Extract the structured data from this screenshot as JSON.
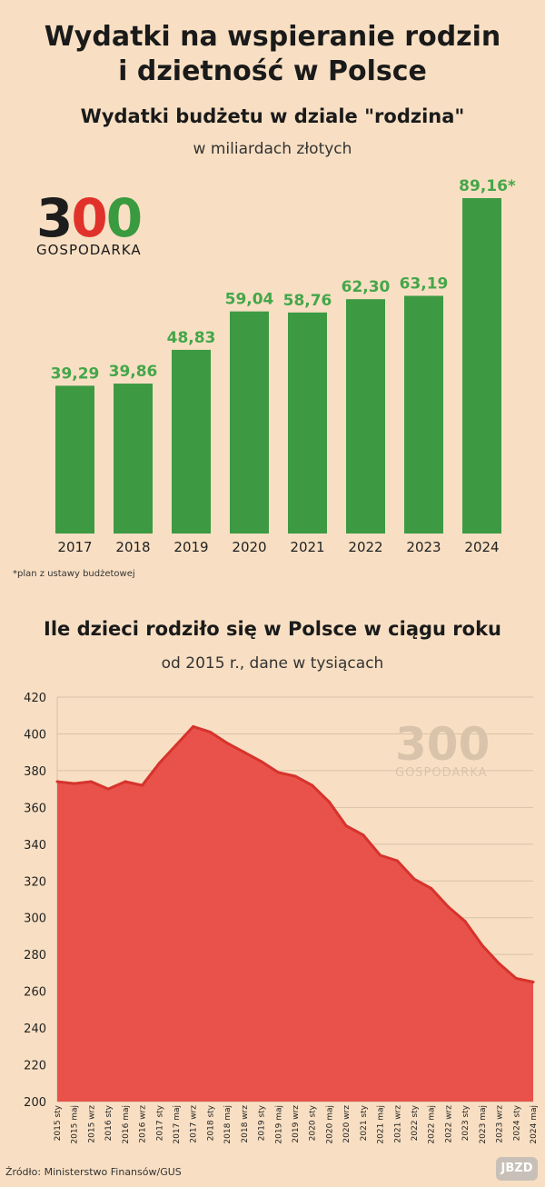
{
  "title_line1": "Wydatki na wspieranie rodzin",
  "title_line2": "i dzietność w Polsce",
  "logo": {
    "digits": [
      "3",
      "0",
      "0"
    ],
    "word": "GOSPODARKA"
  },
  "colors": {
    "background": "#f8dfc3",
    "bar": "#3d9a43",
    "bar_label": "#45a64a",
    "area_fill": "#e8524a",
    "area_line": "#d6332c",
    "logo_red": "#e0322b",
    "logo_green": "#3a9a3f"
  },
  "footnote": "*plan z ustawy budżetowej",
  "source": "Źródło: Ministerstwo Finansów/GUS",
  "badge": "JBZD",
  "chart_data": [
    {
      "type": "bar",
      "title": "Wydatki budżetu w dziale \"rodzina\"",
      "subtitle": "w miliardach złotych",
      "categories": [
        "2017",
        "2018",
        "2019",
        "2020",
        "2021",
        "2022",
        "2023",
        "2024"
      ],
      "values": [
        39.29,
        39.86,
        48.83,
        59.04,
        58.76,
        62.3,
        63.19,
        89.16
      ],
      "data_labels": [
        "39,29",
        "39,86",
        "48,83",
        "59,04",
        "58,76",
        "62,30",
        "63,19",
        "89,16*"
      ],
      "ylim": [
        0,
        89.16
      ],
      "grid": false
    },
    {
      "type": "area",
      "title": "Ile dzieci rodziło się w Polsce w ciągu roku",
      "subtitle": "od 2015 r., dane w tysiącach",
      "categories": [
        "2015 sty",
        "2015 maj",
        "2015 wrz",
        "2016 sty",
        "2016 maj",
        "2016 wrz",
        "2017 sty",
        "2017 maj",
        "2017 wrz",
        "2018 sty",
        "2018 maj",
        "2018 wrz",
        "2019 sty",
        "2019 maj",
        "2019 wrz",
        "2020 sty",
        "2020 maj",
        "2020 wrz",
        "2021 sty",
        "2021 maj",
        "2021 wrz",
        "2022 sty",
        "2022 maj",
        "2022 wrz",
        "2023 sty",
        "2023 maj",
        "2023 wrz",
        "2024 sty",
        "2024 maj"
      ],
      "values": [
        374,
        373,
        374,
        370,
        374,
        372,
        384,
        394,
        404,
        401,
        395,
        390,
        385,
        379,
        377,
        372,
        363,
        350,
        345,
        334,
        331,
        321,
        316,
        306,
        298,
        285,
        275,
        267,
        265
      ],
      "yticks": [
        "420",
        "400",
        "380",
        "360",
        "340",
        "320",
        "300",
        "280",
        "260",
        "240",
        "220",
        "200"
      ],
      "ylim": [
        200,
        420
      ],
      "grid": true
    }
  ]
}
